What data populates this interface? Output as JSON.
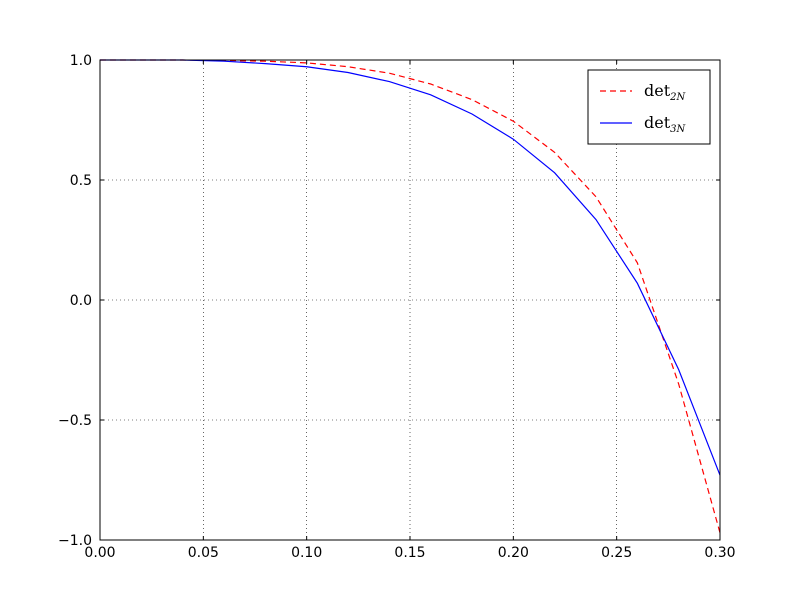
{
  "chart_data": {
    "type": "line",
    "title": "",
    "xlabel": "",
    "ylabel": "",
    "xlim": [
      0.0,
      0.3
    ],
    "ylim": [
      -1.0,
      1.0
    ],
    "grid": true,
    "legend_position": "top-right",
    "x_ticks": [
      0.0,
      0.05,
      0.1,
      0.15,
      0.2,
      0.25,
      0.3
    ],
    "x_tick_labels": [
      "0.00",
      "0.05",
      "0.10",
      "0.15",
      "0.20",
      "0.25",
      "0.30"
    ],
    "y_ticks": [
      1.0,
      0.5,
      0.0,
      -0.5,
      -1.0
    ],
    "y_tick_labels": [
      "1.0",
      "0.5",
      "0.0",
      "−0.5",
      "−1.0"
    ],
    "series": [
      {
        "name": "det",
        "name_subscript": "2N",
        "color": "#ff0000",
        "style": "dashed",
        "x": [
          0.0,
          0.02,
          0.04,
          0.06,
          0.08,
          0.1,
          0.12,
          0.14,
          0.16,
          0.18,
          0.2,
          0.22,
          0.24,
          0.26,
          0.28,
          0.3
        ],
        "y": [
          1.0,
          1.0,
          1.0,
          0.998,
          0.995,
          0.988,
          0.972,
          0.945,
          0.9,
          0.835,
          0.745,
          0.615,
          0.43,
          0.155,
          -0.35,
          -0.97
        ]
      },
      {
        "name": "det",
        "name_subscript": "3N",
        "color": "#0000ff",
        "style": "solid",
        "x": [
          0.0,
          0.02,
          0.04,
          0.06,
          0.08,
          0.1,
          0.12,
          0.14,
          0.16,
          0.18,
          0.2,
          0.22,
          0.24,
          0.26,
          0.28,
          0.3
        ],
        "y": [
          1.0,
          1.0,
          1.0,
          0.995,
          0.985,
          0.972,
          0.948,
          0.91,
          0.855,
          0.775,
          0.67,
          0.53,
          0.335,
          0.07,
          -0.29,
          -0.73
        ]
      }
    ]
  }
}
